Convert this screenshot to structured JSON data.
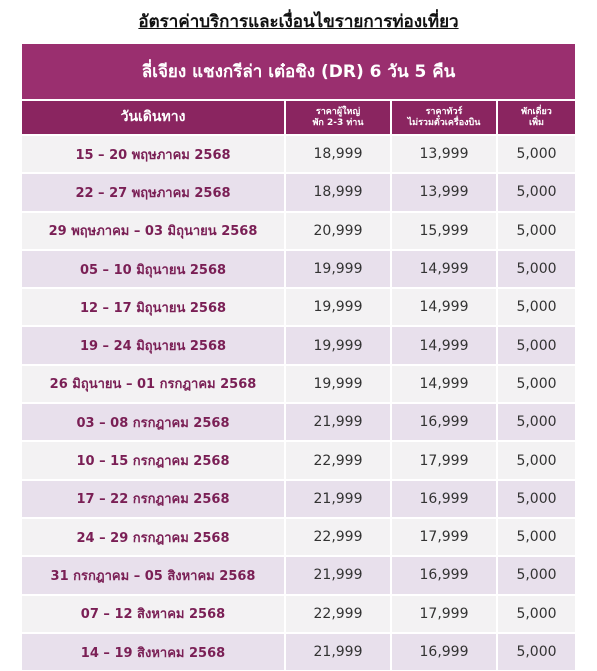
{
  "header": {
    "title": "อัตราค่าบริการและเงื่อนไขรายการท่องเที่ยว"
  },
  "table": {
    "caption": "ลี่เจียง แชงกรีล่า เต๋อชิง (DR) 6 วัน 5 คืน",
    "columns": [
      [
        "วันเดินทาง"
      ],
      [
        "ราคาผู้ใหญ่",
        "พัก 2-3 ท่าน"
      ],
      [
        "ราคาทัวร์",
        "ไม่รวมตั๋วเครื่องบิน"
      ],
      [
        "พักเดี่ยว",
        "เพิ่ม"
      ]
    ],
    "rows": [
      [
        "15 – 20 พฤษภาคม 2568",
        "18,999",
        "13,999",
        "5,000"
      ],
      [
        "22 – 27 พฤษภาคม 2568",
        "18,999",
        "13,999",
        "5,000"
      ],
      [
        "29 พฤษภาคม – 03 มิถุนายน 2568",
        "20,999",
        "15,999",
        "5,000"
      ],
      [
        "05 – 10 มิถุนายน 2568",
        "19,999",
        "14,999",
        "5,000"
      ],
      [
        "12 – 17 มิถุนายน 2568",
        "19,999",
        "14,999",
        "5,000"
      ],
      [
        "19 – 24 มิถุนายน 2568",
        "19,999",
        "14,999",
        "5,000"
      ],
      [
        "26 มิถุนายน – 01 กรกฎาคม 2568",
        "19,999",
        "14,999",
        "5,000"
      ],
      [
        "03 – 08 กรกฎาคม 2568",
        "21,999",
        "16,999",
        "5,000"
      ],
      [
        "10 – 15 กรกฎาคม 2568",
        "22,999",
        "17,999",
        "5,000"
      ],
      [
        "17 – 22 กรกฎาคม 2568",
        "21,999",
        "16,999",
        "5,000"
      ],
      [
        "24 – 29 กรกฎาคม 2568",
        "22,999",
        "17,999",
        "5,000"
      ],
      [
        "31 กรกฎาคม – 05 สิงหาคม 2568",
        "21,999",
        "16,999",
        "5,000"
      ],
      [
        "07 – 12 สิงหาคม 2568",
        "22,999",
        "17,999",
        "5,000"
      ],
      [
        "14 – 19 สิงหาคม 2568",
        "21,999",
        "16,999",
        "5,000"
      ]
    ]
  }
}
